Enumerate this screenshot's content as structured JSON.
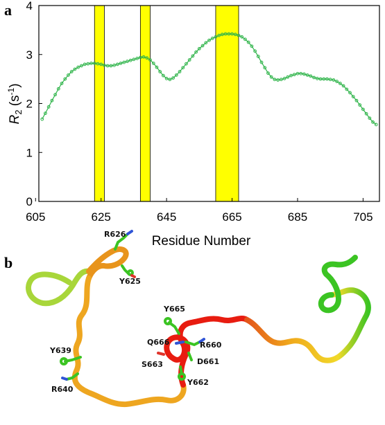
{
  "panels": {
    "a": "a",
    "b": "b"
  },
  "chart_data": {
    "type": "line",
    "xlabel": "Residue Number",
    "ylabel_main": "R",
    "ylabel_sub": "2",
    "ylabel_unit": " (s",
    "ylabel_sup": "-1",
    "ylabel_close": ")",
    "xlim": [
      606,
      710
    ],
    "ylim": [
      0,
      4
    ],
    "xticks": [
      605,
      625,
      645,
      665,
      685,
      705
    ],
    "yticks": [
      0,
      1,
      2,
      3,
      4
    ],
    "grid": false,
    "line_color": "#2fb44a",
    "highlight_color": "#ffff00",
    "highlight_regions": [
      [
        623,
        626
      ],
      [
        637,
        640
      ],
      [
        660,
        667
      ]
    ],
    "series": [
      {
        "x": [
          607,
          608,
          609,
          610,
          611,
          612,
          613,
          614,
          615,
          616,
          617,
          618,
          619,
          620,
          621,
          622,
          623,
          624,
          625,
          626,
          627,
          628,
          629,
          630,
          631,
          632,
          633,
          634,
          635,
          636,
          637,
          638,
          639,
          640,
          641,
          642,
          643,
          644,
          645,
          646,
          647,
          648,
          649,
          650,
          651,
          652,
          653,
          654,
          655,
          656,
          657,
          658,
          659,
          660,
          661,
          662,
          663,
          664,
          665,
          666,
          667,
          668,
          669,
          670,
          671,
          672,
          673,
          674,
          675,
          676,
          677,
          678,
          679,
          680,
          681,
          682,
          683,
          684,
          685,
          686,
          687,
          688,
          689,
          690,
          691,
          692,
          693,
          694,
          695,
          696,
          697,
          698,
          699,
          700,
          701,
          702,
          703,
          704,
          705,
          706,
          707,
          708,
          709
        ],
        "y": [
          1.68,
          1.8,
          1.93,
          2.06,
          2.18,
          2.3,
          2.41,
          2.5,
          2.58,
          2.65,
          2.7,
          2.74,
          2.77,
          2.8,
          2.81,
          2.82,
          2.82,
          2.81,
          2.8,
          2.78,
          2.77,
          2.77,
          2.78,
          2.8,
          2.82,
          2.84,
          2.86,
          2.88,
          2.9,
          2.92,
          2.94,
          2.95,
          2.93,
          2.89,
          2.82,
          2.74,
          2.65,
          2.57,
          2.51,
          2.49,
          2.52,
          2.58,
          2.65,
          2.73,
          2.81,
          2.89,
          2.97,
          3.05,
          3.12,
          3.18,
          3.24,
          3.29,
          3.33,
          3.36,
          3.39,
          3.41,
          3.42,
          3.42,
          3.42,
          3.41,
          3.39,
          3.36,
          3.31,
          3.25,
          3.17,
          3.07,
          2.96,
          2.84,
          2.73,
          2.62,
          2.54,
          2.49,
          2.48,
          2.49,
          2.51,
          2.54,
          2.57,
          2.59,
          2.61,
          2.61,
          2.6,
          2.58,
          2.56,
          2.53,
          2.51,
          2.5,
          2.5,
          2.5,
          2.49,
          2.48,
          2.45,
          2.41,
          2.36,
          2.29,
          2.22,
          2.14,
          2.06,
          1.97,
          1.88,
          1.79,
          1.7,
          1.62,
          1.57
        ]
      }
    ]
  },
  "structure": {
    "labels": {
      "r626": "R626",
      "y625": "Y625",
      "y665": "Y665",
      "q666": "Q666",
      "r660": "R660",
      "s663": "S663",
      "d661": "D661",
      "y662": "Y662",
      "y639": "Y639",
      "r640": "R640"
    }
  }
}
